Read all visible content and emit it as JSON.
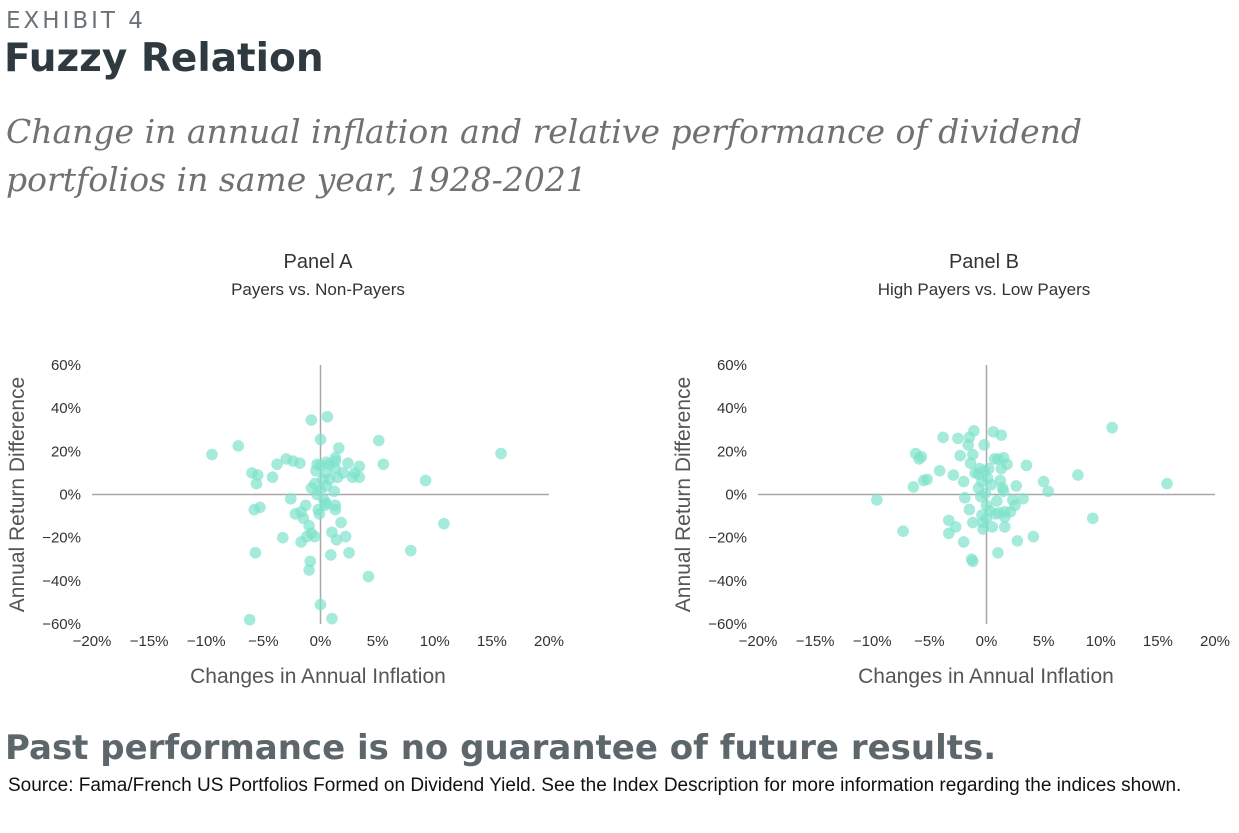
{
  "header": {
    "exhibit": "EXHIBIT 4",
    "title": "Fuzzy Relation",
    "subtitle": "Change in annual inflation and relative performance of dividend portfolios in same year, 1928-2021"
  },
  "footer": {
    "disclaimer": "Past performance is no guarantee of future results.",
    "source": "Source: Fama/French US Portfolios Formed on Dividend Yield. See the Index Description for more information regarding the indices shown."
  },
  "colors": {
    "dot": "#7fe3cc",
    "zero_line": "#a8a8a8"
  },
  "chart_data": [
    {
      "type": "scatter",
      "title": "Panel A",
      "subtitle": "Payers vs. Non-Payers",
      "xlabel": "Changes in Annual Inflation",
      "ylabel": "Annual Return Difference",
      "xlim": [
        -20,
        20
      ],
      "ylim": [
        -60,
        60
      ],
      "x_ticks": [
        -20,
        -15,
        -10,
        -5,
        0,
        5,
        10,
        15,
        20
      ],
      "y_ticks": [
        60,
        40,
        20,
        0,
        -20,
        -40,
        -60
      ],
      "x_tick_labels": [
        "−20%",
        "−15%",
        "−10%",
        "−5%",
        "0%",
        "5%",
        "10%",
        "15%",
        "20%"
      ],
      "y_tick_labels": [
        "60%",
        "40%",
        "20%",
        "0%",
        "−20%",
        "−40%",
        "−60%"
      ],
      "grid": false,
      "points": [
        [
          -9.5,
          18.5
        ],
        [
          -7.2,
          22.5
        ],
        [
          -6.0,
          10.0
        ],
        [
          -5.5,
          9.0
        ],
        [
          -5.6,
          5.0
        ],
        [
          -5.8,
          -7.0
        ],
        [
          -5.3,
          -6.0
        ],
        [
          -5.7,
          -27.0
        ],
        [
          -6.2,
          -58.0
        ],
        [
          -4.2,
          8.0
        ],
        [
          -3.8,
          14.0
        ],
        [
          -3.3,
          -20.0
        ],
        [
          -3.0,
          16.5
        ],
        [
          -2.4,
          15.5
        ],
        [
          -2.6,
          -2.0
        ],
        [
          -2.2,
          -9.0
        ],
        [
          -1.8,
          14.5
        ],
        [
          -1.7,
          -8.0
        ],
        [
          -1.5,
          -11.0
        ],
        [
          -1.7,
          -22.0
        ],
        [
          -1.2,
          -19.5
        ],
        [
          -1.0,
          -14.5
        ],
        [
          -1.3,
          -5.0
        ],
        [
          -0.8,
          -18.0
        ],
        [
          -0.8,
          3.0
        ],
        [
          -0.5,
          5.0
        ],
        [
          -0.5,
          -19.5
        ],
        [
          -0.4,
          11.0
        ],
        [
          -0.3,
          14.0
        ],
        [
          -0.9,
          -31.0
        ],
        [
          -1.0,
          -35.0
        ],
        [
          -0.8,
          34.5
        ],
        [
          -0.3,
          0.0
        ],
        [
          -0.2,
          -7.0
        ],
        [
          -0.1,
          -9.0
        ],
        [
          0.0,
          25.5
        ],
        [
          0.0,
          13.5
        ],
        [
          0.2,
          7.0
        ],
        [
          0.0,
          2.0
        ],
        [
          0.0,
          -51.0
        ],
        [
          0.3,
          -2.5
        ],
        [
          0.4,
          -5.0
        ],
        [
          0.5,
          15.0
        ],
        [
          0.5,
          10.0
        ],
        [
          0.5,
          4.0
        ],
        [
          0.5,
          -4.0
        ],
        [
          0.6,
          36.0
        ],
        [
          0.8,
          14.0
        ],
        [
          0.8,
          7.0
        ],
        [
          0.9,
          -28.0
        ],
        [
          1.0,
          -17.5
        ],
        [
          1.0,
          -57.5
        ],
        [
          1.3,
          15.5
        ],
        [
          1.3,
          17.0
        ],
        [
          1.3,
          12.0
        ],
        [
          1.2,
          1.5
        ],
        [
          1.3,
          -5.0
        ],
        [
          1.3,
          -7.0
        ],
        [
          1.4,
          -21.0
        ],
        [
          1.5,
          8.0
        ],
        [
          1.6,
          21.5
        ],
        [
          1.8,
          -13.0
        ],
        [
          2.0,
          10.0
        ],
        [
          2.2,
          -19.5
        ],
        [
          2.4,
          14.5
        ],
        [
          2.5,
          -27.0
        ],
        [
          2.8,
          8.0
        ],
        [
          3.0,
          10.0
        ],
        [
          3.4,
          13.0
        ],
        [
          3.4,
          8.0
        ],
        [
          4.2,
          -38.0
        ],
        [
          5.1,
          25.0
        ],
        [
          5.5,
          14.0
        ],
        [
          7.9,
          -26.0
        ],
        [
          9.2,
          6.5
        ],
        [
          10.8,
          -13.5
        ],
        [
          15.8,
          19.0
        ]
      ]
    },
    {
      "type": "scatter",
      "title": "Panel B",
      "subtitle": "High Payers vs. Low Payers",
      "xlabel": "Changes in Annual Inflation",
      "ylabel": "Annual Return Difference",
      "xlim": [
        -20,
        20
      ],
      "ylim": [
        -60,
        60
      ],
      "x_ticks": [
        -20,
        -15,
        -10,
        -5,
        0,
        5,
        10,
        15,
        20
      ],
      "y_ticks": [
        60,
        40,
        20,
        0,
        -20,
        -40,
        -60
      ],
      "x_tick_labels": [
        "−20%",
        "−15%",
        "−10%",
        "−5%",
        "0%",
        "5%",
        "10%",
        "15%",
        "20%"
      ],
      "y_tick_labels": [
        "60%",
        "40%",
        "20%",
        "0%",
        "−20%",
        "−40%",
        "−60%"
      ],
      "grid": false,
      "points": [
        [
          -9.6,
          -2.5
        ],
        [
          -7.3,
          -17.0
        ],
        [
          -6.4,
          3.5
        ],
        [
          -6.2,
          19.0
        ],
        [
          -5.9,
          16.5
        ],
        [
          -5.7,
          17.5
        ],
        [
          -5.5,
          6.5
        ],
        [
          -5.2,
          7.0
        ],
        [
          -4.1,
          11.0
        ],
        [
          -3.8,
          26.5
        ],
        [
          -3.3,
          -18.0
        ],
        [
          -3.3,
          -12.0
        ],
        [
          -2.9,
          9.0
        ],
        [
          -2.7,
          -15.0
        ],
        [
          -2.5,
          26.0
        ],
        [
          -2.3,
          18.0
        ],
        [
          -2.0,
          6.0
        ],
        [
          -2.0,
          -22.0
        ],
        [
          -1.9,
          -1.5
        ],
        [
          -1.6,
          23.0
        ],
        [
          -1.5,
          26.5
        ],
        [
          -1.5,
          -7.0
        ],
        [
          -1.4,
          14.5
        ],
        [
          -1.3,
          -30.0
        ],
        [
          -1.2,
          -31.0
        ],
        [
          -1.2,
          18.5
        ],
        [
          -1.2,
          -13.0
        ],
        [
          -1.1,
          29.5
        ],
        [
          -1.0,
          10.0
        ],
        [
          -0.7,
          9.5
        ],
        [
          -0.7,
          3.0
        ],
        [
          -0.6,
          12.0
        ],
        [
          -0.5,
          -1.0
        ],
        [
          -0.4,
          6.0
        ],
        [
          -0.4,
          -9.5
        ],
        [
          -0.3,
          -13.0
        ],
        [
          -0.3,
          -16.0
        ],
        [
          -0.2,
          23.0
        ],
        [
          -0.2,
          11.0
        ],
        [
          -0.1,
          0.5
        ],
        [
          0.0,
          -5.0
        ],
        [
          0.0,
          -11.0
        ],
        [
          0.1,
          7.5
        ],
        [
          0.2,
          12.0
        ],
        [
          0.3,
          -7.5
        ],
        [
          0.4,
          4.5
        ],
        [
          0.5,
          -15.0
        ],
        [
          0.6,
          29.0
        ],
        [
          0.7,
          16.5
        ],
        [
          0.8,
          -9.0
        ],
        [
          0.9,
          -3.0
        ],
        [
          1.0,
          -27.0
        ],
        [
          1.0,
          16.5
        ],
        [
          1.1,
          -8.5
        ],
        [
          1.2,
          6.5
        ],
        [
          1.3,
          27.5
        ],
        [
          1.3,
          12.0
        ],
        [
          1.4,
          3.0
        ],
        [
          1.5,
          17.0
        ],
        [
          1.5,
          1.5
        ],
        [
          1.6,
          -8.0
        ],
        [
          1.6,
          -10.5
        ],
        [
          1.6,
          -15.0
        ],
        [
          1.8,
          14.0
        ],
        [
          2.1,
          -8.0
        ],
        [
          2.3,
          -2.5
        ],
        [
          2.5,
          -5.0
        ],
        [
          2.6,
          4.0
        ],
        [
          2.7,
          -21.5
        ],
        [
          3.2,
          -2.0
        ],
        [
          3.5,
          13.5
        ],
        [
          4.1,
          -19.5
        ],
        [
          5.0,
          6.0
        ],
        [
          5.4,
          1.5
        ],
        [
          8.0,
          9.0
        ],
        [
          9.3,
          -11.0
        ],
        [
          11.0,
          31.0
        ],
        [
          15.8,
          5.0
        ]
      ]
    }
  ]
}
